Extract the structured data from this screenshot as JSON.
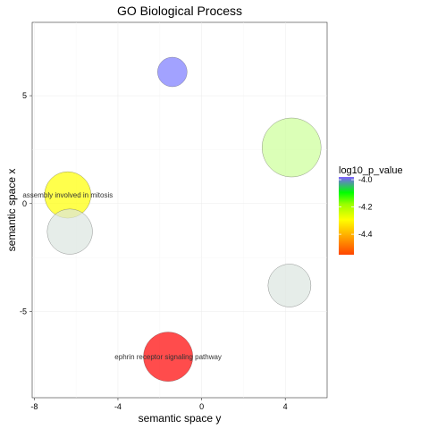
{
  "chart_data": {
    "type": "scatter",
    "title": "GO Biological Process",
    "xlabel": "semantic space y",
    "ylabel": "semantic space x",
    "xlim": [
      -8.1,
      6.0
    ],
    "ylim": [
      -9.0,
      8.4
    ],
    "x_ticks": [
      -8,
      -4,
      0,
      4
    ],
    "y_ticks": [
      -5,
      0,
      5
    ],
    "grid": true,
    "legend": {
      "title": "log10_p_value",
      "ticks": [
        -4.0,
        -4.2,
        -4.4
      ],
      "range": [
        -4.55,
        -3.98
      ],
      "colors": [
        "#ff4500",
        "#ff9900",
        "#ffff00",
        "#99ff00",
        "#00ff00",
        "#7f5fff"
      ]
    },
    "points": [
      {
        "x": -1.4,
        "y": 6.1,
        "log10_p_value": -3.98,
        "color": "#7b7bff",
        "size": 0.25,
        "label": ""
      },
      {
        "x": 4.3,
        "y": 2.6,
        "log10_p_value": -4.12,
        "color": "#ccff99",
        "size": 1.0,
        "label": ""
      },
      {
        "x": -6.4,
        "y": 0.4,
        "log10_p_value": -4.32,
        "color": "#ffff00",
        "size": 0.62,
        "label": "assembly involved in mitosis"
      },
      {
        "x": -6.3,
        "y": -1.3,
        "log10_p_value": -4.25,
        "color": "#dce6e0",
        "size": 0.59,
        "label": ""
      },
      {
        "x": 4.2,
        "y": -3.8,
        "log10_p_value": -4.25,
        "color": "#dce6e0",
        "size": 0.53,
        "label": ""
      },
      {
        "x": -1.6,
        "y": -7.1,
        "log10_p_value": -4.52,
        "color": "#ff0000",
        "size": 0.7,
        "label": "ephrin receptor signaling pathway"
      }
    ]
  }
}
